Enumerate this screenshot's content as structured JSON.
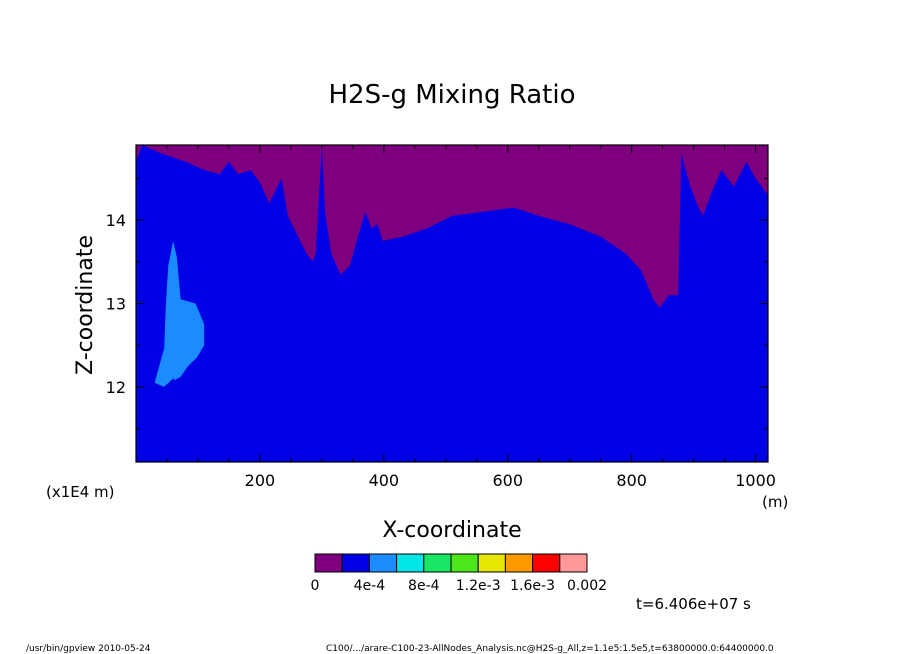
{
  "chart_data": {
    "type": "heatmap",
    "title": "H2S-g Mixing Ratio",
    "xlabel": "X-coordinate",
    "ylabel": "Z-coordinate",
    "x_unit": "(m)",
    "y_scale_label": "(x1E4 m)",
    "xlim": [
      0,
      1020
    ],
    "ylim": [
      11.1,
      14.9
    ],
    "x_ticks": [
      200,
      400,
      600,
      800,
      1000
    ],
    "y_ticks": [
      12,
      13,
      14
    ],
    "x_tick_labels": [
      "200",
      "400",
      "600",
      "800",
      "1000"
    ],
    "y_tick_labels": [
      "12",
      "13",
      "14"
    ],
    "colorbar": {
      "colors": [
        "#7f007f",
        "#0000e6",
        "#1a8cff",
        "#00e6e6",
        "#19e664",
        "#4de619",
        "#e6e600",
        "#ff9900",
        "#ff0000",
        "#ff9999"
      ],
      "labels": [
        "0",
        "4e-4",
        "8e-4",
        "1.2e-3",
        "1.6e-3",
        "0.002"
      ]
    },
    "regions": {
      "purple_boundary": [
        [
          0,
          14.7
        ],
        [
          10,
          14.9
        ],
        [
          40,
          14.8
        ],
        [
          80,
          14.7
        ],
        [
          110,
          14.6
        ],
        [
          135,
          14.55
        ],
        [
          150,
          14.7
        ],
        [
          165,
          14.55
        ],
        [
          185,
          14.6
        ],
        [
          200,
          14.45
        ],
        [
          215,
          14.2
        ],
        [
          235,
          14.5
        ],
        [
          245,
          14.05
        ],
        [
          255,
          13.9
        ],
        [
          265,
          13.75
        ],
        [
          275,
          13.6
        ],
        [
          285,
          13.5
        ],
        [
          290,
          13.6
        ],
        [
          300,
          14.9
        ],
        [
          305,
          14.1
        ],
        [
          315,
          13.6
        ],
        [
          330,
          13.35
        ],
        [
          345,
          13.45
        ],
        [
          360,
          13.85
        ],
        [
          370,
          14.1
        ],
        [
          380,
          13.9
        ],
        [
          390,
          13.95
        ],
        [
          398,
          13.75
        ],
        [
          430,
          13.8
        ],
        [
          470,
          13.9
        ],
        [
          510,
          14.05
        ],
        [
          560,
          14.1
        ],
        [
          610,
          14.15
        ],
        [
          650,
          14.05
        ],
        [
          700,
          13.95
        ],
        [
          750,
          13.8
        ],
        [
          790,
          13.6
        ],
        [
          815,
          13.4
        ],
        [
          835,
          13.05
        ],
        [
          845,
          12.95
        ],
        [
          860,
          13.1
        ],
        [
          875,
          13.1
        ],
        [
          880,
          14.8
        ],
        [
          887,
          14.6
        ],
        [
          895,
          14.4
        ],
        [
          905,
          14.2
        ],
        [
          915,
          14.05
        ],
        [
          930,
          14.35
        ],
        [
          945,
          14.6
        ],
        [
          965,
          14.4
        ],
        [
          985,
          14.7
        ],
        [
          1000,
          14.5
        ],
        [
          1020,
          14.3
        ]
      ],
      "lightblue_patches": [
        [
          [
            30,
            12.05
          ],
          [
            45,
            12.45
          ],
          [
            52,
            12.35
          ],
          [
            60,
            12.1
          ],
          [
            45,
            12.0
          ]
        ],
        [
          [
            45,
            12.35
          ],
          [
            48,
            12.95
          ],
          [
            52,
            13.45
          ],
          [
            60,
            13.75
          ],
          [
            66,
            13.55
          ],
          [
            72,
            13.05
          ],
          [
            96,
            13.0
          ],
          [
            110,
            12.75
          ],
          [
            110,
            12.5
          ],
          [
            98,
            12.35
          ],
          [
            84,
            12.25
          ],
          [
            72,
            12.12
          ],
          [
            62,
            12.08
          ]
        ],
        [
          [
            88,
            12.9
          ],
          [
            102,
            12.9
          ],
          [
            106,
            12.65
          ],
          [
            92,
            12.6
          ]
        ]
      ]
    },
    "annotation": "t=6.406e+07 s",
    "footer_left": "/usr/bin/gpview  2010-05-24",
    "footer_right": "C100/.../arare-C100-23-AllNodes_Analysis.nc@H2S-g_All,z=1.1e5:1.5e5,t=63800000.0:64400000.0"
  }
}
